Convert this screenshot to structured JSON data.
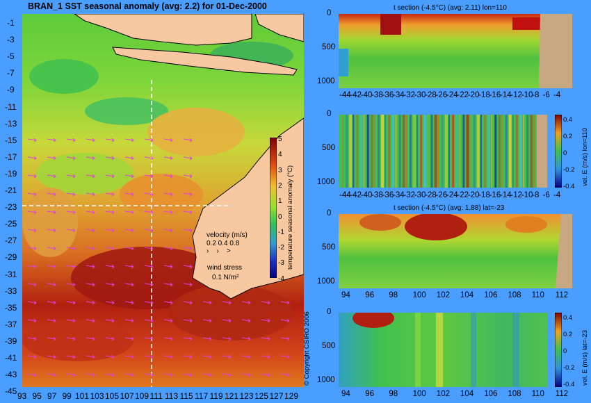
{
  "main_map": {
    "title": "BRAN_1  SST seasonal anomaly  (avg: 2.2) for 01-Dec-2000",
    "x_ticks": [
      "93",
      "95",
      "97",
      "99",
      "101",
      "103",
      "105",
      "107",
      "109",
      "111",
      "113",
      "115",
      "117",
      "119",
      "121",
      "123",
      "125",
      "127",
      "129"
    ],
    "y_ticks": [
      "-1",
      "-3",
      "-5",
      "-7",
      "-9",
      "-11",
      "-13",
      "-15",
      "-17",
      "-19",
      "-21",
      "-23",
      "-25",
      "-27",
      "-29",
      "-31",
      "-33",
      "-35",
      "-37",
      "-39",
      "-41",
      "-43",
      "-45"
    ],
    "colorbar_label": "temperature seasonal anomaly (°C)",
    "colorbar_ticks": [
      "5",
      "4",
      "3",
      "2",
      "1",
      "0",
      "-1",
      "-2",
      "-3",
      "-4"
    ],
    "velocity_title": "velocity (m/s)",
    "velocity_values": "0.2 0.4 0.8",
    "wind_title": "wind stress",
    "wind_value": "0.1 N/m²",
    "copyright": "© Copyright CSIRO 2006"
  },
  "panels": [
    {
      "subtitle": "t section (-4.5°C) (avg: 2.11) lon=110",
      "x_ticks": [
        "-44",
        "-42",
        "-40",
        "-38",
        "-36",
        "-34",
        "-32",
        "-30",
        "-28",
        "-26",
        "-24",
        "-22",
        "-20",
        "-18",
        "-16",
        "-14",
        "-12",
        "-10",
        "-8",
        "-6",
        "-4"
      ],
      "y_ticks": [
        "0",
        "500",
        "1000"
      ],
      "side_label": ""
    },
    {
      "subtitle": "",
      "x_ticks": [
        "-44",
        "-42",
        "-40",
        "-38",
        "-36",
        "-34",
        "-32",
        "-30",
        "-28",
        "-26",
        "-24",
        "-22",
        "-20",
        "-18",
        "-16",
        "-14",
        "-12",
        "-10",
        "-8",
        "-6",
        "-4"
      ],
      "y_ticks": [
        "0",
        "500",
        "1000"
      ],
      "side_label": "vel. E (m/s) lon=110",
      "colorbar_ticks": [
        "0.4",
        "0.2",
        "0",
        "-0.2",
        "-0.4"
      ]
    },
    {
      "subtitle": "t section (-4.5°C) (avg: 1.88) lat=-23",
      "x_ticks": [
        "94",
        "96",
        "98",
        "100",
        "102",
        "104",
        "106",
        "108",
        "110",
        "112"
      ],
      "y_ticks": [
        "0",
        "500",
        "1000"
      ],
      "side_label": ""
    },
    {
      "subtitle": "",
      "x_ticks": [
        "94",
        "96",
        "98",
        "100",
        "102",
        "104",
        "106",
        "108",
        "110",
        "112"
      ],
      "y_ticks": [
        "0",
        "500",
        "1000"
      ],
      "side_label": "vel. E (m/s) lat=-23",
      "colorbar_ticks": [
        "0.4",
        "0.2",
        "0",
        "-0.2",
        "-0.4"
      ]
    }
  ],
  "chart_data": [
    {
      "type": "heatmap",
      "title": "BRAN_1  SST seasonal anomaly  (avg: 2.2) for 01-Dec-2000",
      "xlabel": "",
      "ylabel": "",
      "xlim": [
        93,
        130
      ],
      "ylim": [
        -45,
        0
      ],
      "colorbar": {
        "label": "temperature seasonal anomaly (°C)",
        "range": [
          -4,
          5
        ]
      }
    },
    {
      "type": "heatmap",
      "title": "t section (-4.5°C) (avg: 2.11) lon=110",
      "xlim": [
        -45,
        -3
      ],
      "ylim": [
        1050,
        0
      ]
    },
    {
      "type": "heatmap",
      "title": "",
      "xlim": [
        -45,
        -3
      ],
      "ylim": [
        1050,
        0
      ],
      "colorbar": {
        "label": "vel. E (m/s) lon=110",
        "range": [
          -0.4,
          0.4
        ]
      }
    },
    {
      "type": "heatmap",
      "title": "t section (-4.5°C) (avg: 1.88) lat=-23",
      "xlim": [
        93,
        114
      ],
      "ylim": [
        1050,
        0
      ]
    },
    {
      "type": "heatmap",
      "title": "",
      "xlim": [
        93,
        114
      ],
      "ylim": [
        1050,
        0
      ],
      "colorbar": {
        "label": "vel. E (m/s) lat=-23",
        "range": [
          -0.4,
          0.4
        ]
      }
    }
  ],
  "colors": {
    "background": "#4a9eff",
    "land": "#f8c8a0",
    "section_land": "#c8a882"
  }
}
